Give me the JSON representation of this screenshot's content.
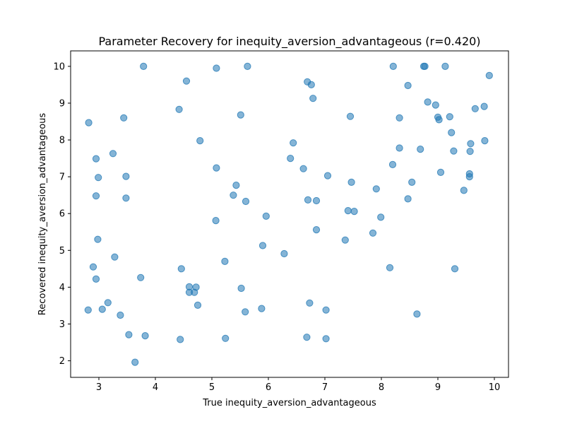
{
  "chart_data": {
    "type": "scatter",
    "title": "Parameter Recovery for inequity_aversion_advantageous (r=0.420)",
    "xlabel": "True inequity_aversion_advantageous",
    "ylabel": "Recovered inequity_aversion_advantageous",
    "xlim": [
      2.5,
      10.25
    ],
    "ylim": [
      1.55,
      10.42
    ],
    "xticks": [
      3,
      4,
      5,
      6,
      7,
      8,
      9,
      10
    ],
    "yticks": [
      2,
      3,
      4,
      5,
      6,
      7,
      8,
      9,
      10
    ],
    "grid": false,
    "marker_color": "#1f77b4",
    "marker_alpha": 0.55,
    "points": [
      [
        3.79,
        10.0
      ],
      [
        5.08,
        9.95
      ],
      [
        5.63,
        10.0
      ],
      [
        8.21,
        10.0
      ],
      [
        8.75,
        10.0
      ],
      [
        8.77,
        10.0
      ],
      [
        9.13,
        10.0
      ],
      [
        4.55,
        9.6
      ],
      [
        6.69,
        9.58
      ],
      [
        6.76,
        9.5
      ],
      [
        8.47,
        9.48
      ],
      [
        9.91,
        9.75
      ],
      [
        6.79,
        9.13
      ],
      [
        8.82,
        9.03
      ],
      [
        8.96,
        8.95
      ],
      [
        9.82,
        8.91
      ],
      [
        9.66,
        8.85
      ],
      [
        4.42,
        8.83
      ],
      [
        5.51,
        8.68
      ],
      [
        7.45,
        8.64
      ],
      [
        9.21,
        8.63
      ],
      [
        8.32,
        8.6
      ],
      [
        3.44,
        8.6
      ],
      [
        9.0,
        8.62
      ],
      [
        9.02,
        8.55
      ],
      [
        2.82,
        8.47
      ],
      [
        9.24,
        8.2
      ],
      [
        4.79,
        7.98
      ],
      [
        9.83,
        7.98
      ],
      [
        9.58,
        7.9
      ],
      [
        6.44,
        7.92
      ],
      [
        8.32,
        7.78
      ],
      [
        8.69,
        7.75
      ],
      [
        9.28,
        7.7
      ],
      [
        9.57,
        7.69
      ],
      [
        3.25,
        7.63
      ],
      [
        2.95,
        7.49
      ],
      [
        6.39,
        7.5
      ],
      [
        8.2,
        7.33
      ],
      [
        5.08,
        7.24
      ],
      [
        6.62,
        7.22
      ],
      [
        9.05,
        7.12
      ],
      [
        9.56,
        7.08
      ],
      [
        9.56,
        7.0
      ],
      [
        7.05,
        7.03
      ],
      [
        3.48,
        7.01
      ],
      [
        2.99,
        6.98
      ],
      [
        7.47,
        6.85
      ],
      [
        8.54,
        6.85
      ],
      [
        5.43,
        6.77
      ],
      [
        7.91,
        6.67
      ],
      [
        9.46,
        6.63
      ],
      [
        5.38,
        6.5
      ],
      [
        2.95,
        6.48
      ],
      [
        3.48,
        6.42
      ],
      [
        8.47,
        6.4
      ],
      [
        6.7,
        6.37
      ],
      [
        6.85,
        6.35
      ],
      [
        5.6,
        6.33
      ],
      [
        7.41,
        6.08
      ],
      [
        7.52,
        6.06
      ],
      [
        5.96,
        5.93
      ],
      [
        7.99,
        5.9
      ],
      [
        5.07,
        5.81
      ],
      [
        6.85,
        5.56
      ],
      [
        7.85,
        5.47
      ],
      [
        2.98,
        5.3
      ],
      [
        7.36,
        5.28
      ],
      [
        5.9,
        5.13
      ],
      [
        3.28,
        4.82
      ],
      [
        6.28,
        4.91
      ],
      [
        5.23,
        4.7
      ],
      [
        2.9,
        4.55
      ],
      [
        4.46,
        4.5
      ],
      [
        8.15,
        4.53
      ],
      [
        9.3,
        4.5
      ],
      [
        3.74,
        4.26
      ],
      [
        2.95,
        4.22
      ],
      [
        4.6,
        4.01
      ],
      [
        4.72,
        4.0
      ],
      [
        5.52,
        3.97
      ],
      [
        4.6,
        3.86
      ],
      [
        4.69,
        3.86
      ],
      [
        3.16,
        3.58
      ],
      [
        6.73,
        3.57
      ],
      [
        4.75,
        3.51
      ],
      [
        5.88,
        3.42
      ],
      [
        3.06,
        3.4
      ],
      [
        7.02,
        3.38
      ],
      [
        2.81,
        3.38
      ],
      [
        5.59,
        3.33
      ],
      [
        8.63,
        3.27
      ],
      [
        3.38,
        3.24
      ],
      [
        3.53,
        2.71
      ],
      [
        3.82,
        2.68
      ],
      [
        6.68,
        2.64
      ],
      [
        5.24,
        2.61
      ],
      [
        4.44,
        2.58
      ],
      [
        7.02,
        2.6
      ],
      [
        3.64,
        1.96
      ]
    ]
  }
}
